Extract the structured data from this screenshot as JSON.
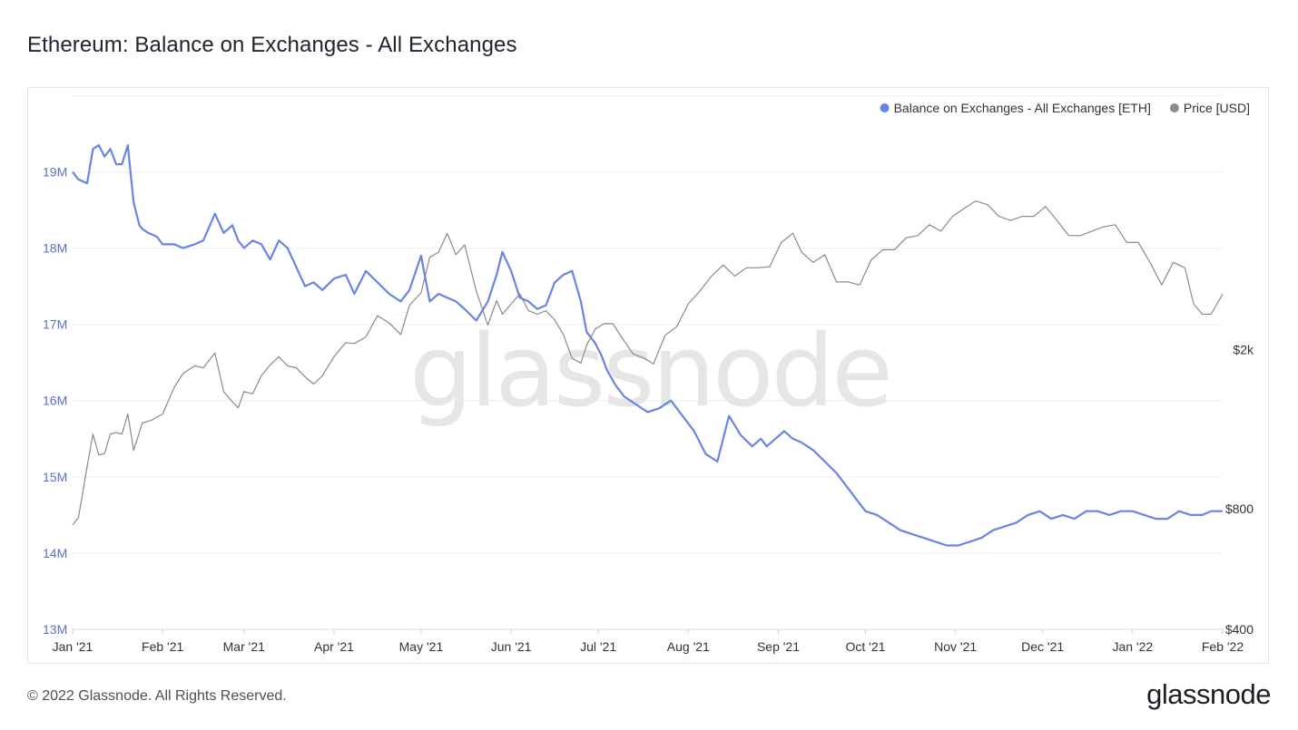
{
  "title": "Ethereum: Balance on Exchanges - All Exchanges",
  "footer": {
    "copyright": "© 2022 Glassnode. All Rights Reserved.",
    "logo": "glassnode"
  },
  "watermark": "glassnode",
  "colors": {
    "balance": "#6a83e6",
    "price": "#8a8a8a",
    "grid": "#eeeeee",
    "left_tick": "#5a6fc9",
    "right_tick": "#333333"
  },
  "chart_data": {
    "type": "line",
    "legend_position": "top-right",
    "grid": true,
    "x_ticks": [
      "Jan '21",
      "Feb '21",
      "Mar '21",
      "Apr '21",
      "May '21",
      "Jun '21",
      "Jul '21",
      "Aug '21",
      "Sep '21",
      "Oct '21",
      "Nov '21",
      "Dec '21",
      "Jan '22",
      "Feb '22"
    ],
    "x_range": [
      "2021-01-01",
      "2022-02-01"
    ],
    "y_left": {
      "ticks": [
        "13M",
        "14M",
        "15M",
        "16M",
        "17M",
        "18M",
        "19M"
      ],
      "tick_values": [
        13,
        14,
        15,
        16,
        17,
        18,
        19
      ],
      "range": [
        13,
        20.1
      ]
    },
    "y_right": {
      "ticks": [
        "$400",
        "$800",
        "$2k"
      ],
      "tick_values": [
        400,
        800,
        2000
      ],
      "scale": "log",
      "range": [
        400,
        9000
      ]
    },
    "series": [
      {
        "name": "Balance on Exchanges - All Exchanges [ETH]",
        "axis": "left",
        "unit": "M ETH",
        "x": [
          "2021-01-01",
          "2021-01-03",
          "2021-01-06",
          "2021-01-08",
          "2021-01-10",
          "2021-01-12",
          "2021-01-14",
          "2021-01-16",
          "2021-01-18",
          "2021-01-20",
          "2021-01-22",
          "2021-01-24",
          "2021-01-25",
          "2021-01-27",
          "2021-01-30",
          "2021-02-01",
          "2021-02-05",
          "2021-02-08",
          "2021-02-12",
          "2021-02-15",
          "2021-02-19",
          "2021-02-22",
          "2021-02-25",
          "2021-02-27",
          "2021-03-01",
          "2021-03-04",
          "2021-03-07",
          "2021-03-10",
          "2021-03-13",
          "2021-03-16",
          "2021-03-19",
          "2021-03-22",
          "2021-03-25",
          "2021-03-28",
          "2021-04-01",
          "2021-04-05",
          "2021-04-08",
          "2021-04-12",
          "2021-04-16",
          "2021-04-20",
          "2021-04-24",
          "2021-04-27",
          "2021-05-01",
          "2021-05-04",
          "2021-05-07",
          "2021-05-10",
          "2021-05-13",
          "2021-05-16",
          "2021-05-20",
          "2021-05-24",
          "2021-05-27",
          "2021-05-29",
          "2021-06-01",
          "2021-06-04",
          "2021-06-07",
          "2021-06-10",
          "2021-06-13",
          "2021-06-16",
          "2021-06-19",
          "2021-06-22",
          "2021-06-25",
          "2021-06-27",
          "2021-06-30",
          "2021-07-02",
          "2021-07-04",
          "2021-07-07",
          "2021-07-10",
          "2021-07-14",
          "2021-07-18",
          "2021-07-22",
          "2021-07-26",
          "2021-07-30",
          "2021-08-03",
          "2021-08-07",
          "2021-08-11",
          "2021-08-15",
          "2021-08-19",
          "2021-08-23",
          "2021-08-26",
          "2021-08-28",
          "2021-08-31",
          "2021-09-03",
          "2021-09-06",
          "2021-09-09",
          "2021-09-13",
          "2021-09-17",
          "2021-09-21",
          "2021-09-24",
          "2021-09-27",
          "2021-10-01",
          "2021-10-05",
          "2021-10-09",
          "2021-10-13",
          "2021-10-17",
          "2021-10-21",
          "2021-10-25",
          "2021-10-29",
          "2021-11-02",
          "2021-11-06",
          "2021-11-10",
          "2021-11-14",
          "2021-11-18",
          "2021-11-22",
          "2021-11-26",
          "2021-11-30",
          "2021-12-04",
          "2021-12-08",
          "2021-12-12",
          "2021-12-16",
          "2021-12-20",
          "2021-12-24",
          "2021-12-28",
          "2022-01-01",
          "2022-01-05",
          "2022-01-09",
          "2022-01-13",
          "2022-01-17",
          "2022-01-21",
          "2022-01-25",
          "2022-01-28",
          "2022-02-01"
        ],
        "values": [
          19.0,
          18.9,
          18.85,
          19.3,
          19.35,
          19.2,
          19.3,
          19.1,
          19.1,
          19.35,
          18.6,
          18.3,
          18.25,
          18.2,
          18.15,
          18.05,
          18.05,
          18.0,
          18.05,
          18.1,
          18.45,
          18.2,
          18.3,
          18.1,
          18.0,
          18.1,
          18.05,
          17.85,
          18.1,
          18.0,
          17.75,
          17.5,
          17.55,
          17.45,
          17.6,
          17.65,
          17.4,
          17.7,
          17.55,
          17.4,
          17.3,
          17.45,
          17.9,
          17.3,
          17.4,
          17.35,
          17.3,
          17.2,
          17.05,
          17.3,
          17.65,
          17.95,
          17.7,
          17.35,
          17.3,
          17.2,
          17.25,
          17.55,
          17.65,
          17.7,
          17.3,
          16.9,
          16.75,
          16.6,
          16.4,
          16.2,
          16.05,
          15.95,
          15.85,
          15.9,
          16.0,
          15.8,
          15.6,
          15.3,
          15.2,
          15.8,
          15.55,
          15.4,
          15.5,
          15.4,
          15.5,
          15.6,
          15.5,
          15.45,
          15.35,
          15.2,
          15.05,
          14.9,
          14.75,
          14.55,
          14.5,
          14.4,
          14.3,
          14.25,
          14.2,
          14.15,
          14.1,
          14.1,
          14.15,
          14.2,
          14.3,
          14.35,
          14.4,
          14.5,
          14.55,
          14.45,
          14.5,
          14.45,
          14.55,
          14.55,
          14.5,
          14.55,
          14.55,
          14.5,
          14.45,
          14.45,
          14.55,
          14.5,
          14.5,
          14.55,
          14.55
        ]
      },
      {
        "name": "Price [USD]",
        "axis": "right",
        "unit": "USD",
        "x": [
          "2021-01-01",
          "2021-01-03",
          "2021-01-06",
          "2021-01-08",
          "2021-01-10",
          "2021-01-12",
          "2021-01-14",
          "2021-01-16",
          "2021-01-18",
          "2021-01-20",
          "2021-01-22",
          "2021-01-25",
          "2021-01-28",
          "2021-02-01",
          "2021-02-05",
          "2021-02-08",
          "2021-02-12",
          "2021-02-15",
          "2021-02-19",
          "2021-02-22",
          "2021-02-25",
          "2021-02-27",
          "2021-03-01",
          "2021-03-04",
          "2021-03-07",
          "2021-03-10",
          "2021-03-13",
          "2021-03-16",
          "2021-03-19",
          "2021-03-22",
          "2021-03-25",
          "2021-03-28",
          "2021-04-01",
          "2021-04-05",
          "2021-04-08",
          "2021-04-12",
          "2021-04-16",
          "2021-04-20",
          "2021-04-24",
          "2021-04-27",
          "2021-05-01",
          "2021-05-04",
          "2021-05-07",
          "2021-05-10",
          "2021-05-13",
          "2021-05-16",
          "2021-05-20",
          "2021-05-24",
          "2021-05-27",
          "2021-05-29",
          "2021-06-01",
          "2021-06-04",
          "2021-06-07",
          "2021-06-10",
          "2021-06-13",
          "2021-06-16",
          "2021-06-19",
          "2021-06-22",
          "2021-06-25",
          "2021-06-27",
          "2021-06-30",
          "2021-07-03",
          "2021-07-06",
          "2021-07-09",
          "2021-07-13",
          "2021-07-17",
          "2021-07-20",
          "2021-07-24",
          "2021-07-28",
          "2021-08-01",
          "2021-08-05",
          "2021-08-09",
          "2021-08-13",
          "2021-08-17",
          "2021-08-21",
          "2021-08-25",
          "2021-08-29",
          "2021-09-02",
          "2021-09-06",
          "2021-09-09",
          "2021-09-13",
          "2021-09-17",
          "2021-09-21",
          "2021-09-25",
          "2021-09-29",
          "2021-10-03",
          "2021-10-07",
          "2021-10-11",
          "2021-10-15",
          "2021-10-19",
          "2021-10-23",
          "2021-10-27",
          "2021-10-31",
          "2021-11-04",
          "2021-11-08",
          "2021-11-12",
          "2021-11-16",
          "2021-11-20",
          "2021-11-24",
          "2021-11-28",
          "2021-12-02",
          "2021-12-06",
          "2021-12-10",
          "2021-12-14",
          "2021-12-18",
          "2021-12-22",
          "2021-12-26",
          "2021-12-30",
          "2022-01-03",
          "2022-01-07",
          "2022-01-11",
          "2022-01-15",
          "2022-01-19",
          "2022-01-22",
          "2022-01-25",
          "2022-01-28",
          "2022-02-01"
        ],
        "values": [
          730,
          760,
          1020,
          1230,
          1090,
          1100,
          1230,
          1240,
          1230,
          1380,
          1120,
          1310,
          1330,
          1380,
          1610,
          1740,
          1820,
          1800,
          1960,
          1570,
          1480,
          1430,
          1570,
          1550,
          1720,
          1830,
          1920,
          1820,
          1800,
          1710,
          1640,
          1720,
          1920,
          2080,
          2070,
          2150,
          2430,
          2330,
          2180,
          2580,
          2770,
          3400,
          3500,
          3900,
          3450,
          3650,
          2800,
          2300,
          2650,
          2450,
          2600,
          2750,
          2500,
          2450,
          2500,
          2370,
          2180,
          1900,
          1850,
          2050,
          2250,
          2320,
          2320,
          2150,
          1950,
          1900,
          1840,
          2170,
          2280,
          2600,
          2800,
          3050,
          3250,
          3050,
          3200,
          3200,
          3220,
          3700,
          3900,
          3500,
          3300,
          3450,
          2950,
          2950,
          2900,
          3350,
          3550,
          3550,
          3800,
          3850,
          4100,
          3950,
          4300,
          4500,
          4700,
          4600,
          4300,
          4200,
          4300,
          4300,
          4550,
          4200,
          3850,
          3850,
          3950,
          4050,
          4100,
          3700,
          3700,
          3300,
          2900,
          3300,
          3200,
          2600,
          2450,
          2450,
          2750
        ]
      }
    ]
  }
}
